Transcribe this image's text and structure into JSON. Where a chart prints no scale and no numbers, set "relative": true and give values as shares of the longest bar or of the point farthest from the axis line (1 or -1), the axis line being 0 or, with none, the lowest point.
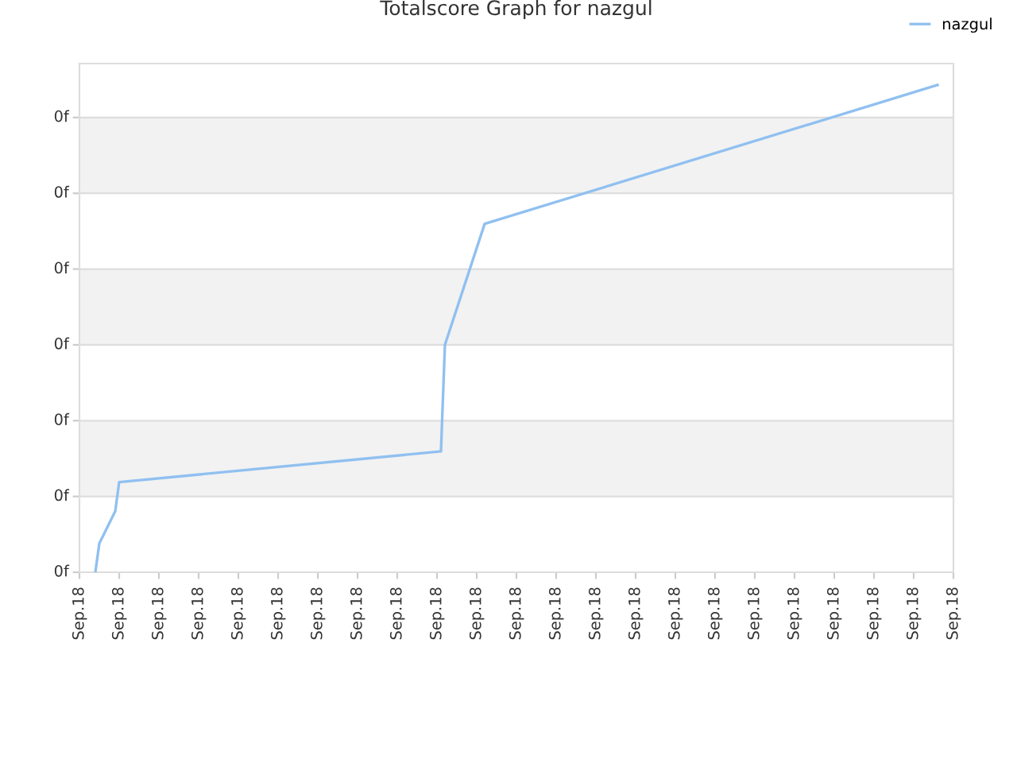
{
  "chart_data": {
    "type": "line",
    "title": "Totalscore Graph for nazgul",
    "relative": true,
    "categories": [
      "Sep.18",
      null,
      null,
      null,
      null,
      null,
      null,
      null,
      null,
      null,
      "Sep.18",
      null,
      null,
      null,
      null,
      null,
      null,
      null,
      null,
      null,
      "Sep.18",
      null,
      null,
      null,
      null,
      null,
      null,
      null,
      null,
      null,
      "Sep.18",
      null,
      null,
      null,
      null,
      null,
      null,
      null,
      null,
      null,
      "Sep.18",
      null,
      null,
      null,
      null,
      null,
      null,
      null,
      null,
      null,
      "Sep.18",
      null,
      null,
      null,
      null,
      null,
      null,
      null,
      null,
      null,
      "Sep.18",
      null,
      null,
      null,
      null,
      null,
      null,
      null,
      null,
      null,
      "Sep.18",
      null,
      null,
      null,
      null,
      null,
      null,
      null,
      null,
      null,
      "Sep.18",
      null,
      null,
      null,
      null,
      null,
      null,
      null,
      null,
      null,
      "Sep.18",
      null,
      null,
      null,
      null,
      null,
      null,
      null,
      null,
      null,
      "Sep.18",
      null,
      null,
      null,
      null,
      null,
      null,
      null,
      null,
      null,
      "Sep.18",
      null,
      null,
      null,
      null,
      null,
      null,
      null,
      null,
      null,
      "Sep.18",
      null,
      null,
      null,
      null,
      null,
      null,
      null,
      null,
      null,
      "Sep.18",
      null,
      null,
      null,
      null,
      null,
      null,
      null,
      null,
      null,
      "Sep.18",
      null,
      null,
      null,
      null,
      null,
      null,
      null,
      null,
      null,
      "Sep.18",
      null,
      null,
      null,
      null,
      null,
      null,
      null,
      null,
      null,
      "Sep.18",
      null,
      null,
      null,
      null,
      null,
      null,
      null,
      null,
      null,
      "Sep.18",
      null,
      null,
      null,
      null,
      null,
      null,
      null,
      null,
      null,
      "Sep.18",
      null,
      null,
      null,
      null,
      null,
      null,
      null,
      null,
      null,
      "Sep.18",
      null,
      null,
      null,
      null,
      null,
      null,
      null,
      null,
      null,
      "Sep.18",
      null,
      null,
      null,
      null,
      null,
      null,
      null,
      null,
      null,
      "Sep.18",
      null,
      null,
      null,
      null,
      null,
      null,
      null,
      null,
      null,
      "Sep.18"
    ],
    "series": [
      {
        "name": "nazgul",
        "color": "#90c0f0",
        "values": [
          null,
          null,
          null,
          null,
          0,
          0.059,
          null,
          null,
          null,
          0.125,
          0.185,
          null,
          null,
          null,
          null,
          null,
          null,
          null,
          null,
          null,
          null,
          null,
          null,
          null,
          null,
          null,
          null,
          null,
          null,
          null,
          null,
          null,
          null,
          null,
          null,
          null,
          null,
          null,
          null,
          null,
          null,
          null,
          null,
          null,
          null,
          null,
          null,
          null,
          null,
          null,
          null,
          null,
          null,
          null,
          null,
          null,
          null,
          null,
          null,
          null,
          null,
          null,
          null,
          null,
          null,
          null,
          null,
          null,
          null,
          null,
          null,
          null,
          null,
          null,
          null,
          null,
          null,
          null,
          null,
          null,
          null,
          null,
          null,
          null,
          null,
          null,
          null,
          null,
          null,
          null,
          null,
          0.248,
          0.467,
          null,
          null,
          null,
          null,
          null,
          null,
          null,
          null,
          null,
          0.715,
          null,
          null,
          null,
          null,
          null,
          null,
          null,
          null,
          null,
          null,
          null,
          null,
          null,
          null,
          null,
          null,
          null,
          null,
          null,
          null,
          null,
          null,
          null,
          null,
          null,
          null,
          null,
          null,
          null,
          null,
          null,
          null,
          null,
          null,
          null,
          null,
          null,
          null,
          null,
          null,
          null,
          null,
          null,
          null,
          null,
          null,
          null,
          null,
          null,
          null,
          null,
          null,
          null,
          null,
          null,
          null,
          null,
          null,
          null,
          null,
          null,
          null,
          null,
          null,
          null,
          null,
          null,
          null,
          null,
          null,
          null,
          null,
          null,
          null,
          null,
          null,
          null,
          null,
          null,
          null,
          null,
          null,
          null,
          null,
          null,
          null,
          null,
          null,
          null,
          null,
          null,
          null,
          null,
          null,
          null,
          null,
          null,
          null,
          null,
          null,
          null,
          null,
          null,
          null,
          null,
          null,
          null,
          null,
          null,
          null,
          null,
          null,
          null,
          1,
          null,
          null,
          null,
          null
        ]
      }
    ],
    "annotations": [
      "0f",
      "0f",
      "0f",
      "0f",
      "0f",
      "0f",
      "0f"
    ],
    "grid": "y",
    "legend": "top right",
    "marker": "none",
    "line_style": "solid"
  }
}
